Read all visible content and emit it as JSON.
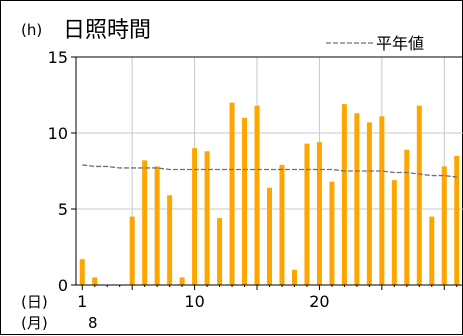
{
  "chart_data": {
    "type": "bar",
    "title": "日照時間",
    "unit": "(h)",
    "legend": {
      "normal_label": "平年値",
      "placement": "top-right"
    },
    "ylim": [
      0,
      15
    ],
    "yticks": [
      0,
      5,
      10,
      15
    ],
    "xaxis": {
      "day_prefix": "(日)",
      "month_prefix": "(月)",
      "month": "8",
      "tick_days": [
        1,
        10,
        20
      ]
    },
    "grid": true,
    "colors": {
      "bar": "#FFA500",
      "normal": "#707070",
      "grid": "#c8c8c8"
    },
    "days": [
      1,
      2,
      3,
      4,
      5,
      6,
      7,
      8,
      9,
      10,
      11,
      12,
      13,
      14,
      15,
      16,
      17,
      18,
      19,
      20,
      21,
      22,
      23,
      24,
      25,
      26,
      27,
      28,
      29,
      30,
      31
    ],
    "values": [
      1.7,
      0.5,
      0,
      0,
      4.5,
      8.2,
      7.8,
      5.9,
      0.5,
      9.0,
      8.8,
      4.4,
      12.0,
      11.0,
      11.8,
      6.4,
      7.9,
      1.0,
      9.3,
      9.4,
      6.8,
      11.9,
      11.3,
      10.7,
      11.1,
      6.9,
      8.9,
      11.8,
      4.5,
      7.8,
      8.5
    ],
    "normal": [
      7.9,
      7.8,
      7.8,
      7.7,
      7.7,
      7.7,
      7.7,
      7.6,
      7.6,
      7.6,
      7.6,
      7.6,
      7.6,
      7.6,
      7.6,
      7.6,
      7.6,
      7.6,
      7.6,
      7.6,
      7.6,
      7.5,
      7.5,
      7.5,
      7.5,
      7.4,
      7.4,
      7.3,
      7.2,
      7.2,
      7.1
    ]
  }
}
